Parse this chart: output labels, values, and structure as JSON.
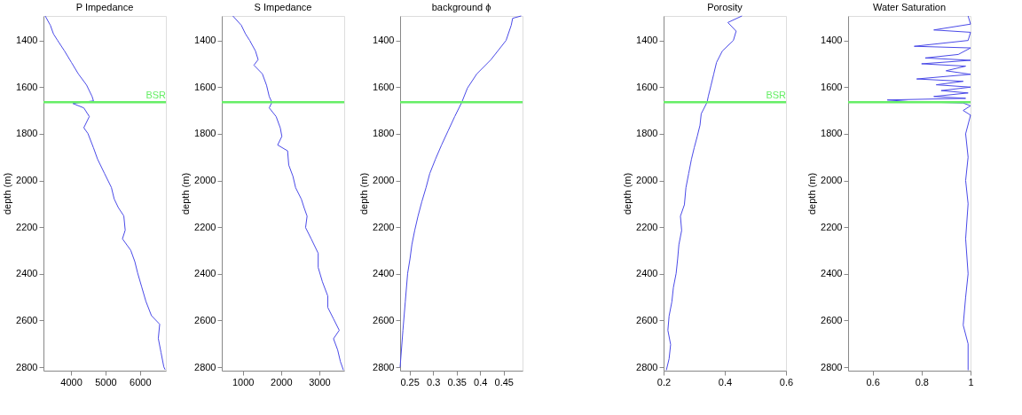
{
  "chart_data": [
    {
      "type": "line",
      "title": "P Impedance",
      "ylabel": "depth (m)",
      "color": "#4a4ae8",
      "grid": false,
      "x": [
        3250,
        3400,
        3490,
        3610,
        3810,
        4010,
        4210,
        4450,
        4610,
        4650,
        4050,
        4370,
        4530,
        4370,
        4490,
        4650,
        4770,
        4970,
        5170,
        5250,
        5370,
        5530,
        5570,
        5490,
        5730,
        5850,
        5930,
        6050,
        6170,
        6330,
        6570,
        6530,
        6610,
        6690,
        6730
      ],
      "values": [
        1295,
        1335,
        1372,
        1400,
        1445,
        1494,
        1543,
        1591,
        1640,
        1659,
        1670,
        1689,
        1726,
        1774,
        1799,
        1860,
        1909,
        1970,
        2030,
        2079,
        2116,
        2152,
        2213,
        2250,
        2299,
        2348,
        2396,
        2457,
        2518,
        2579,
        2616,
        2677,
        2738,
        2799,
        2811
      ],
      "xlim": [
        3200,
        6750
      ],
      "xticks": [
        4000,
        5000,
        6000
      ],
      "ylim": [
        2815,
        1295
      ],
      "yticks": [
        1400,
        1600,
        1800,
        2000,
        2200,
        2400,
        2600,
        2800
      ],
      "ref_lines": [
        {
          "axis": "y",
          "value": 1665,
          "label": "BSR",
          "color": "#66ee66"
        }
      ]
    },
    {
      "type": "line",
      "title": "S Impedance",
      "ylabel": "depth (m)",
      "color": "#4a4ae8",
      "grid": false,
      "x": [
        740,
        960,
        1070,
        1180,
        1330,
        1400,
        1290,
        1510,
        1620,
        1690,
        1760,
        1690,
        1870,
        1980,
        2020,
        1910,
        2170,
        2200,
        2310,
        2380,
        2530,
        2600,
        2680,
        2640,
        2790,
        2970,
        2970,
        3080,
        3220,
        3220,
        3370,
        3520,
        3370,
        3480,
        3550,
        3630
      ],
      "values": [
        1295,
        1335,
        1372,
        1400,
        1445,
        1482,
        1506,
        1543,
        1592,
        1640,
        1665,
        1689,
        1726,
        1775,
        1811,
        1848,
        1873,
        1934,
        1982,
        2031,
        2080,
        2116,
        2153,
        2202,
        2251,
        2312,
        2373,
        2434,
        2495,
        2544,
        2593,
        2642,
        2678,
        2727,
        2776,
        2813
      ],
      "xlim": [
        450,
        3650
      ],
      "xticks": [
        1000,
        2000,
        3000
      ],
      "ylim": [
        2815,
        1295
      ],
      "yticks": [
        1400,
        1600,
        1800,
        2000,
        2200,
        2400,
        2600,
        2800
      ],
      "ref_lines": [
        {
          "axis": "y",
          "value": 1665,
          "color": "#66ee66"
        }
      ]
    },
    {
      "type": "line",
      "title": "background ϕ",
      "ylabel": "depth (m)",
      "color": "#4a4ae8",
      "grid": false,
      "x": [
        0.487,
        0.469,
        0.466,
        0.455,
        0.423,
        0.393,
        0.373,
        0.361,
        0.346,
        0.332,
        0.318,
        0.305,
        0.293,
        0.285,
        0.276,
        0.268,
        0.261,
        0.255,
        0.251,
        0.246,
        0.241,
        0.236,
        0.23
      ],
      "values": [
        1295,
        1305,
        1335,
        1400,
        1482,
        1543,
        1604,
        1665,
        1726,
        1787,
        1848,
        1909,
        1970,
        2031,
        2092,
        2153,
        2214,
        2275,
        2336,
        2398,
        2520,
        2642,
        2800
      ],
      "xlim": [
        0.23,
        0.49
      ],
      "xticks": [
        0.25,
        0.3,
        0.35,
        0.4,
        0.45
      ],
      "ylim": [
        2815,
        1295
      ],
      "yticks": [
        1400,
        1600,
        1800,
        2000,
        2200,
        2400,
        2600,
        2800
      ],
      "ref_lines": [
        {
          "axis": "y",
          "value": 1665,
          "color": "#66ee66"
        }
      ]
    },
    {
      "type": "line",
      "title": "Porosity",
      "ylabel": "depth (m)",
      "color": "#4a4ae8",
      "grid": false,
      "x": [
        0.456,
        0.41,
        0.437,
        0.428,
        0.392,
        0.373,
        0.364,
        0.355,
        0.346,
        0.342,
        0.323,
        0.319,
        0.31,
        0.3,
        0.291,
        0.282,
        0.273,
        0.268,
        0.255,
        0.259,
        0.25,
        0.246,
        0.241,
        0.232,
        0.227,
        0.218,
        0.214,
        0.223,
        0.218,
        0.209
      ],
      "values": [
        1295,
        1323,
        1360,
        1400,
        1445,
        1494,
        1543,
        1592,
        1640,
        1665,
        1714,
        1763,
        1811,
        1860,
        1909,
        1970,
        2031,
        2104,
        2153,
        2214,
        2275,
        2336,
        2398,
        2459,
        2520,
        2581,
        2642,
        2703,
        2764,
        2813
      ],
      "xlim": [
        0.2,
        0.6
      ],
      "xticks": [
        0.2,
        0.4,
        0.6
      ],
      "ylim": [
        2815,
        1295
      ],
      "yticks": [
        1400,
        1600,
        1800,
        2000,
        2200,
        2400,
        2600,
        2800
      ],
      "ref_lines": [
        {
          "axis": "y",
          "value": 1665,
          "label": "BSR",
          "color": "#66ee66"
        }
      ]
    },
    {
      "type": "line",
      "title": "Water Saturation",
      "ylabel": "depth (m)",
      "color": "#4a4ae8",
      "grid": false,
      "x": [
        0.99,
        1.0,
        0.85,
        1.0,
        0.99,
        0.77,
        1.0,
        0.95,
        0.815,
        1.0,
        0.8,
        0.98,
        0.9,
        1.0,
        0.78,
        0.97,
        0.86,
        1.0,
        0.88,
        0.99,
        0.85,
        0.98,
        0.66,
        0.75,
        0.97,
        1.0,
        0.97,
        1.0,
        0.98,
        0.99,
        0.98,
        0.99,
        0.98,
        0.99,
        0.98,
        0.97,
        0.99,
        0.99
      ],
      "values": [
        1295,
        1330,
        1355,
        1365,
        1400,
        1425,
        1432,
        1460,
        1475,
        1485,
        1500,
        1510,
        1530,
        1545,
        1565,
        1575,
        1590,
        1600,
        1615,
        1625,
        1640,
        1648,
        1655,
        1662,
        1668,
        1680,
        1700,
        1720,
        1800,
        1900,
        2000,
        2100,
        2250,
        2400,
        2500,
        2620,
        2700,
        2813
      ],
      "xlim": [
        0.5,
        1.0
      ],
      "xticks": [
        0.6,
        0.8,
        1
      ],
      "ylim": [
        2815,
        1295
      ],
      "yticks": [
        1400,
        1600,
        1800,
        2000,
        2200,
        2400,
        2600,
        2800
      ],
      "ref_lines": [
        {
          "axis": "y",
          "value": 1665,
          "color": "#66ee66"
        }
      ]
    }
  ]
}
